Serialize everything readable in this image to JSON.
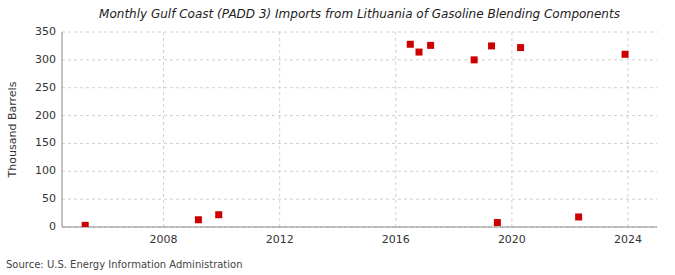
{
  "chart_data": {
    "type": "scatter",
    "title": "Monthly Gulf Coast (PADD 3) Imports from Lithuania of Gasoline Blending Components",
    "ylabel": "Thousand Barrels",
    "source": "Source: U.S. Energy Information Administration",
    "x": [
      2005.3,
      2009.2,
      2009.9,
      2016.8,
      2017.2,
      2018.7,
      2019.3,
      2020.3,
      2019.5,
      2022.3,
      2023.9,
      2016.5
    ],
    "values": [
      3,
      13,
      22,
      314,
      326,
      300,
      325,
      322,
      8,
      18,
      310,
      328
    ],
    "color": "#cc0000",
    "marker": "square",
    "xlim": [
      2004.5,
      2025.0
    ],
    "ylim": [
      0,
      350
    ],
    "xticks": [
      2008,
      2012,
      2016,
      2020,
      2024
    ],
    "yticks": [
      0,
      50,
      100,
      150,
      200,
      250,
      300,
      350
    ],
    "grid": true
  }
}
